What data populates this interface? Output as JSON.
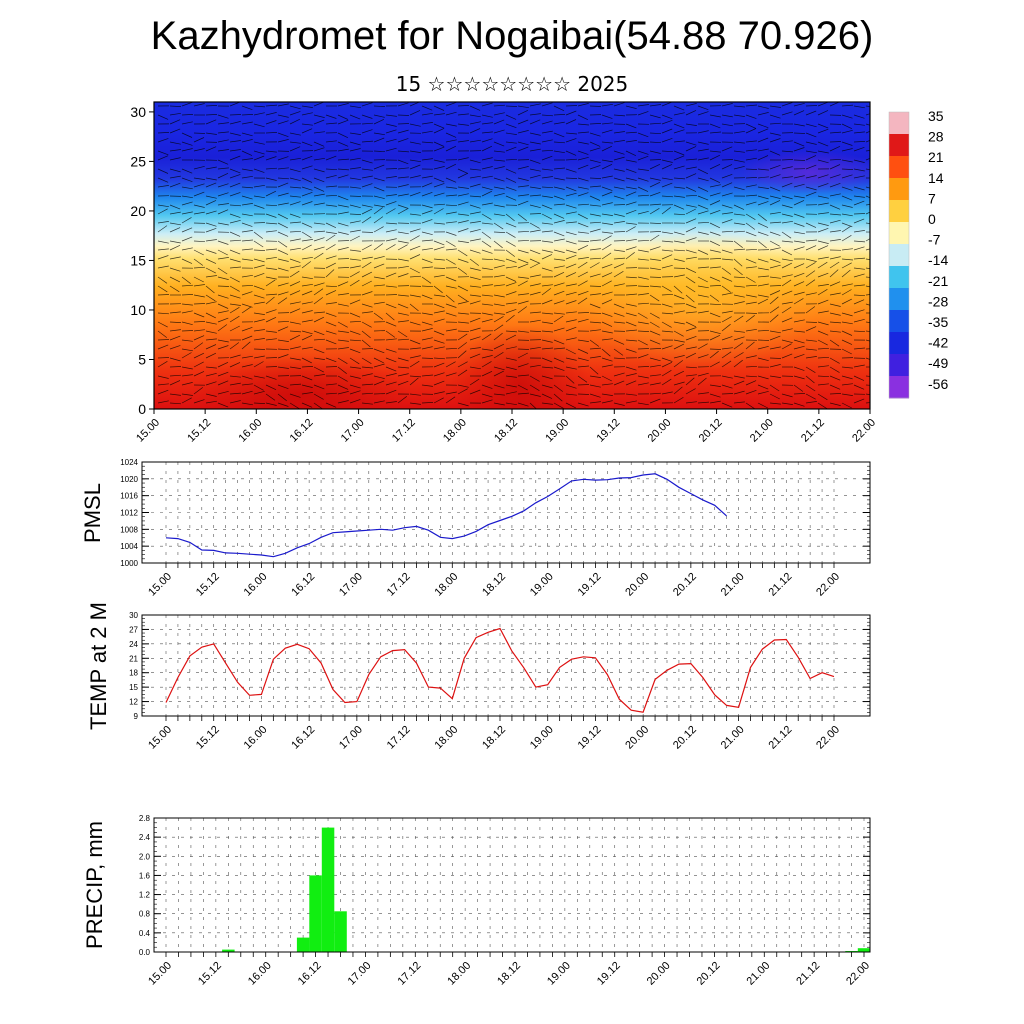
{
  "title": "Kazhydromet for Nogaibai(54.88 70.926)",
  "subtitle": "15 ☆☆☆☆☆☆☆☆ 2025",
  "colors": {
    "pmsl_line": "#1a1acc",
    "temp_line": "#dd1111",
    "precip_bar": "#11ee11"
  },
  "chart_data": [
    {
      "type": "heatmap",
      "name": "cross-section",
      "y_ticks": [
        "0",
        "5",
        "10",
        "15",
        "20",
        "25",
        "30"
      ],
      "ylim": [
        0,
        31
      ],
      "x_ticks": [
        "15.00",
        "15.12",
        "16.00",
        "16.12",
        "17.00",
        "17.12",
        "18.00",
        "18.12",
        "19.00",
        "19.12",
        "20.00",
        "20.12",
        "21.00",
        "21.12",
        "22.00"
      ],
      "colorbar_labels": [
        "35",
        "28",
        "21",
        "14",
        "7",
        "0",
        "-7",
        "-14",
        "-21",
        "-28",
        "-35",
        "-42",
        "-49",
        "-56"
      ],
      "colorbar_colors": [
        "#f4b6c0",
        "#e01818",
        "#ff5010",
        "#ff9a10",
        "#ffd040",
        "#fff6b0",
        "#c8ecf4",
        "#40c4ee",
        "#2090ee",
        "#1650e8",
        "#1828e0",
        "#4020e0",
        "#8a30e0"
      ],
      "overlay": "wind barbs"
    },
    {
      "type": "line",
      "name": "PMSL",
      "ylabel": "PMSL",
      "ylim": [
        1000,
        1024
      ],
      "y_ticks": [
        "1000",
        "1004",
        "1008",
        "1012",
        "1016",
        "1020",
        "1024"
      ],
      "x_ticks": [
        "15.00",
        "15.12",
        "16.00",
        "16.12",
        "17.00",
        "17.12",
        "18.00",
        "18.12",
        "19.00",
        "19.12",
        "20.00",
        "20.12",
        "21.00",
        "21.12",
        "22.00"
      ],
      "step_hours": 3,
      "series": [
        {
          "values": [
            1006,
            1005.8,
            1004.9,
            1003.1,
            1003.0,
            1002.4,
            1002.3,
            1002.1,
            1001.9,
            1001.5,
            1002.3,
            1003.6,
            1004.6,
            1006.1,
            1007.2,
            1007.4,
            1007.6,
            1007.8,
            1008.0,
            1007.8,
            1008.4,
            1008.7,
            1007.8,
            1006.1,
            1005.8,
            1006.4,
            1007.5,
            1009.1,
            1010.1,
            1011.1,
            1012.4,
            1014.3,
            1015.8,
            1017.6,
            1019.5,
            1019.9,
            1019.7,
            1019.8,
            1020.2,
            1020.3,
            1020.9,
            1021.2,
            1019.9,
            1018.0,
            1016.5,
            1015.0,
            1013.7,
            1011.2
          ]
        }
      ]
    },
    {
      "type": "line",
      "name": "TEMP at 2 M",
      "ylabel": "TEMP at 2 M",
      "ylim": [
        9,
        30
      ],
      "y_ticks": [
        "9",
        "12",
        "15",
        "18",
        "21",
        "24",
        "27",
        "30"
      ],
      "x_ticks": [
        "15.00",
        "15.12",
        "16.00",
        "16.12",
        "17.00",
        "17.12",
        "18.00",
        "18.12",
        "19.00",
        "19.12",
        "20.00",
        "20.12",
        "21.00",
        "21.12",
        "22.00"
      ],
      "step_hours": 3,
      "series": [
        {
          "values": [
            11.8,
            17.0,
            21.5,
            23.3,
            24.0,
            20.0,
            16.0,
            13.3,
            13.5,
            20.8,
            23.1,
            23.9,
            23.0,
            20.0,
            14.5,
            11.8,
            12.0,
            17.6,
            21.3,
            22.6,
            22.8,
            20.0,
            15.0,
            14.8,
            12.6,
            21.0,
            25.3,
            26.4,
            27.2,
            22.5,
            19.0,
            15.0,
            15.5,
            19.1,
            20.8,
            21.3,
            21.1,
            17.6,
            12.5,
            10.2,
            9.8,
            16.6,
            18.5,
            19.8,
            19.9,
            17.0,
            13.4,
            11.2,
            10.8,
            19.1,
            22.9,
            24.8,
            24.9,
            21.2,
            16.8,
            18.0,
            17.2
          ]
        }
      ]
    },
    {
      "type": "bar",
      "name": "PRECIP, mm",
      "ylabel": "PRECIP, mm",
      "ylim": [
        0,
        2.8
      ],
      "y_ticks": [
        "0.0",
        "0.4",
        "0.8",
        "1.2",
        "1.6",
        "2.0",
        "2.4",
        "2.8"
      ],
      "x_ticks": [
        "15.00",
        "15.12",
        "16.00",
        "16.12",
        "17.00",
        "17.12",
        "18.00",
        "18.12",
        "19.00",
        "19.12",
        "20.00",
        "20.12",
        "21.00",
        "21.12",
        "22.00"
      ],
      "step_hours": 3,
      "values": [
        0,
        0,
        0,
        0,
        0,
        0.05,
        0,
        0,
        0,
        0,
        0,
        0.3,
        1.6,
        2.6,
        0.85,
        0,
        0,
        0,
        0,
        0,
        0,
        0,
        0,
        0,
        0,
        0,
        0,
        0,
        0,
        0,
        0,
        0,
        0.01,
        0,
        0,
        0,
        0,
        0,
        0,
        0,
        0,
        0,
        0,
        0,
        0,
        0,
        0,
        0,
        0,
        0,
        0,
        0,
        0,
        0,
        0,
        0.02,
        0.08
      ]
    }
  ]
}
